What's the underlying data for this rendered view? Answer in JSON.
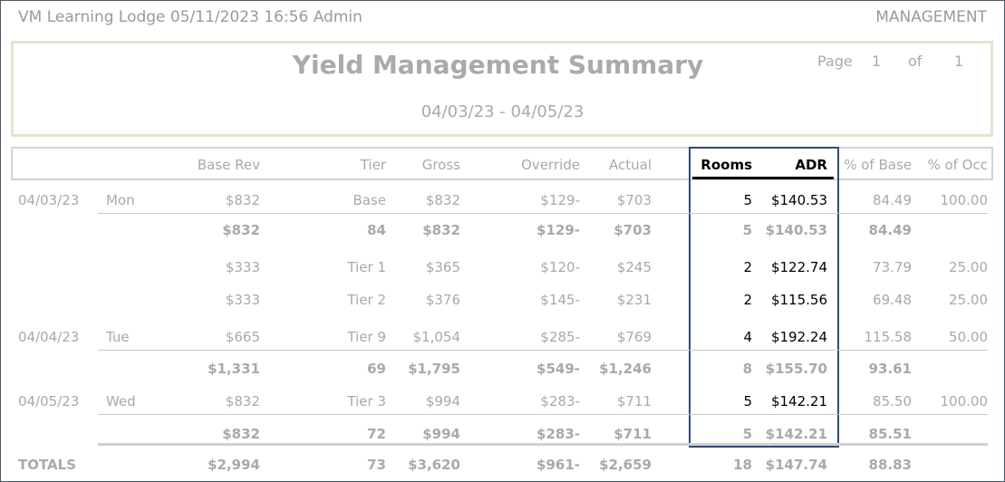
{
  "header": {
    "left": "VM Learning Lodge 05/11/2023 16:56  Admin",
    "right": "MANAGEMENT"
  },
  "report": {
    "title": "Yield Management Summary",
    "page_label": "Page",
    "page": "1",
    "of_label": "of",
    "pages": "1",
    "date_range": "04/03/23 - 04/05/23"
  },
  "table": {
    "columns": [
      {
        "key": "base_rev",
        "label": "Base Rev"
      },
      {
        "key": "tier",
        "label": "Tier"
      },
      {
        "key": "gross",
        "label": "Gross"
      },
      {
        "key": "override",
        "label": "Override"
      },
      {
        "key": "actual",
        "label": "Actual"
      },
      {
        "key": "rooms",
        "label": "Rooms"
      },
      {
        "key": "adr",
        "label": "ADR"
      },
      {
        "key": "pct_base",
        "label": "% of Base"
      },
      {
        "key": "pct_occ",
        "label": "% of Occ"
      }
    ],
    "rows": [
      {
        "date": "04/03/23",
        "day": "Mon",
        "base_rev": "$832",
        "tier": "Base",
        "gross": "$832",
        "override": "$129-",
        "actual": "$703",
        "rooms": "5",
        "adr": "$140.53",
        "pct_base": "84.49",
        "pct_occ": "100.00"
      },
      {
        "bold": true,
        "base_rev": "$832",
        "tier": "84",
        "gross": "$832",
        "override": "$129-",
        "actual": "$703",
        "rooms": "5",
        "adr": "$140.53",
        "pct_base": "84.49"
      },
      {
        "base_rev": "$333",
        "tier": "Tier 1",
        "gross": "$365",
        "override": "$120-",
        "actual": "$245",
        "rooms": "2",
        "adr": "$122.74",
        "pct_base": "73.79",
        "pct_occ": "25.00"
      },
      {
        "base_rev": "$333",
        "tier": "Tier 2",
        "gross": "$376",
        "override": "$145-",
        "actual": "$231",
        "rooms": "2",
        "adr": "$115.56",
        "pct_base": "69.48",
        "pct_occ": "25.00"
      },
      {
        "date": "04/04/23",
        "day": "Tue",
        "base_rev": "$665",
        "tier": "Tier 9",
        "gross": "$1,054",
        "override": "$285-",
        "actual": "$769",
        "rooms": "4",
        "adr": "$192.24",
        "pct_base": "115.58",
        "pct_occ": "50.00"
      },
      {
        "bold": true,
        "base_rev": "$1,331",
        "tier": "69",
        "gross": "$1,795",
        "override": "$549-",
        "actual": "$1,246",
        "rooms": "8",
        "adr": "$155.70",
        "pct_base": "93.61"
      },
      {
        "date": "04/05/23",
        "day": "Wed",
        "base_rev": "$832",
        "tier": "Tier 3",
        "gross": "$994",
        "override": "$283-",
        "actual": "$711",
        "rooms": "5",
        "adr": "$142.21",
        "pct_base": "85.50",
        "pct_occ": "100.00"
      },
      {
        "bold": true,
        "base_rev": "$832",
        "tier": "72",
        "gross": "$994",
        "override": "$283-",
        "actual": "$711",
        "rooms": "5",
        "adr": "$142.21",
        "pct_base": "85.51"
      },
      {
        "bold": true,
        "date": "TOTALS",
        "base_rev": "$2,994",
        "tier": "73",
        "gross": "$3,620",
        "override": "$961-",
        "actual": "$2,659",
        "rooms": "18",
        "adr": "$147.74",
        "pct_base": "88.83"
      }
    ]
  }
}
